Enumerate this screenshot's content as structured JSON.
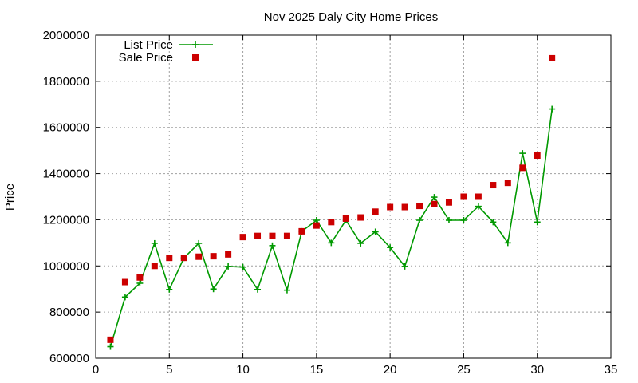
{
  "chart_data": {
    "type": "line",
    "title": "Nov 2025 Daly City Home Prices",
    "xlabel": "",
    "ylabel": "Price",
    "xlim": [
      0,
      35
    ],
    "ylim": [
      600000,
      2000000
    ],
    "x_ticks": [
      0,
      5,
      10,
      15,
      20,
      25,
      30,
      35
    ],
    "y_ticks": [
      600000,
      800000,
      1000000,
      1200000,
      1400000,
      1600000,
      1800000,
      2000000
    ],
    "x_tick_labels": [
      "0",
      "5",
      "10",
      "15",
      "20",
      "25",
      "30",
      "35"
    ],
    "y_tick_labels": [
      "600000",
      "800000",
      "1000000",
      "1200000",
      "1400000",
      "1600000",
      "1800000",
      "2000000"
    ],
    "grid": true,
    "legend_position": "top-left",
    "x": [
      1,
      2,
      3,
      4,
      5,
      6,
      7,
      8,
      9,
      10,
      11,
      12,
      13,
      14,
      15,
      16,
      17,
      18,
      19,
      20,
      21,
      22,
      23,
      24,
      25,
      26,
      27,
      28,
      29,
      30,
      31
    ],
    "series": [
      {
        "name": "List Price",
        "style": "line+cross",
        "color": "#009900",
        "values": [
          650000,
          865000,
          925000,
          1098000,
          898000,
          1035000,
          1098000,
          900000,
          998000,
          995000,
          898000,
          1088000,
          895000,
          1150000,
          1198000,
          1100000,
          1198000,
          1098000,
          1148000,
          1080000,
          998000,
          1198000,
          1298000,
          1198000,
          1198000,
          1258000,
          1190000,
          1100000,
          1488000,
          1190000,
          1680000
        ]
      },
      {
        "name": "Sale Price",
        "style": "square",
        "color": "#cc0000",
        "values": [
          680000,
          930000,
          950000,
          1000000,
          1035000,
          1035000,
          1040000,
          1042000,
          1050000,
          1125000,
          1130000,
          1130000,
          1130000,
          1150000,
          1175000,
          1190000,
          1205000,
          1210000,
          1235000,
          1255000,
          1255000,
          1260000,
          1268000,
          1275000,
          1300000,
          1300000,
          1350000,
          1360000,
          1425000,
          1478000,
          1900000
        ]
      }
    ]
  }
}
